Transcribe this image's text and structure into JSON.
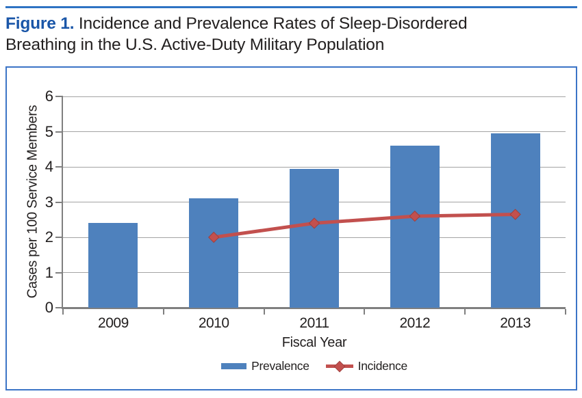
{
  "page": {
    "accent_color": "#2e73c3",
    "title_color": "#1a56a8",
    "frame_border_color": "#3b74c6"
  },
  "title": {
    "prefix": "Figure 1.",
    "line1": " Incidence and Prevalence Rates of Sleep-Disordered",
    "line2": "Breathing in the U.S. Active-Duty Military Population"
  },
  "chart_data": {
    "type": "bar",
    "subtype": "bar-with-line-overlay",
    "categories": [
      "2009",
      "2010",
      "2011",
      "2012",
      "2013"
    ],
    "series": [
      {
        "name": "Prevalence",
        "type": "bar",
        "color": "#4e81bd",
        "values": [
          2.4,
          3.1,
          3.95,
          4.6,
          4.95
        ]
      },
      {
        "name": "Incidence",
        "type": "line",
        "color": "#c2504e",
        "marker": "diamond",
        "values": [
          null,
          2.0,
          2.4,
          2.6,
          2.65
        ]
      }
    ],
    "xlabel": "Fiscal Year",
    "ylabel": "Cases per 100 Service Members",
    "ylim": [
      0,
      6
    ],
    "yticks": [
      0,
      1,
      2,
      3,
      4,
      5,
      6
    ],
    "grid": true,
    "gridline_color": "#a3a3a3",
    "axis_color": "#7f7f7f",
    "legend_position": "bottom"
  }
}
